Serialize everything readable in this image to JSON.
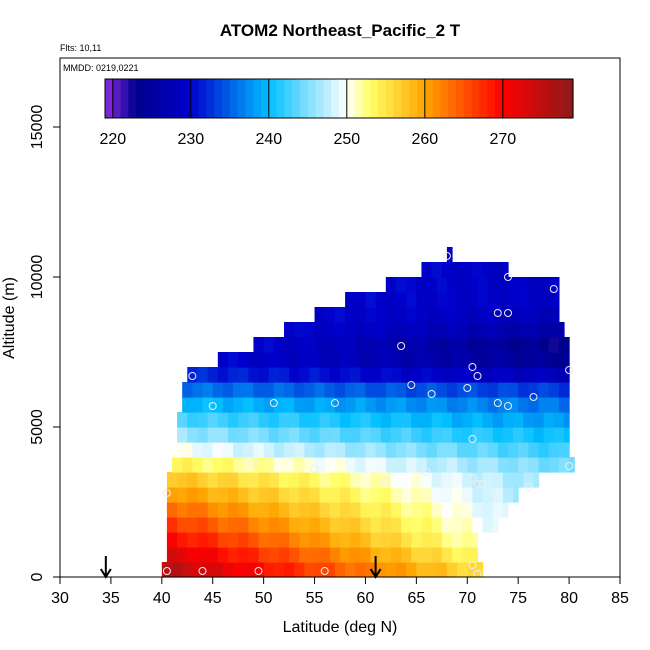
{
  "chart_data": {
    "type": "heatmap",
    "title": "ATOM2 Northeast_Pacific_2 T",
    "info_lines": [
      "Flts: 10,11",
      "MMDD: 0219,0221"
    ],
    "xlabel": "Latitude (deg N)",
    "ylabel": "Altitude (m)",
    "xlim": [
      30,
      85
    ],
    "ylim": [
      0,
      17300
    ],
    "xticks": [
      "30",
      "35",
      "40",
      "45",
      "50",
      "55",
      "60",
      "65",
      "70",
      "75",
      "80",
      "85"
    ],
    "yticks": [
      "0",
      "5000",
      "10000",
      "15000"
    ],
    "colorbar": {
      "range": [
        219,
        279
      ],
      "tick_labels": [
        "220",
        "230",
        "240",
        "250",
        "260",
        "270"
      ],
      "tick_values": [
        220,
        230,
        240,
        250,
        260,
        270
      ],
      "colors": [
        "#8a2be2",
        "#00008b",
        "#0000cd",
        "#00bfff",
        "#ffffff",
        "#ffff66",
        "#ffa500",
        "#ff0000",
        "#8b1a1a"
      ],
      "color_stops": [
        219,
        223,
        230,
        240,
        250,
        253,
        260,
        270,
        279
      ]
    },
    "field": {
      "row_height_m": 500,
      "rows": [
        {
          "alt": 0,
          "lat_min": 40,
          "lat_max": 71.5,
          "temp_south": 276,
          "temp_north": 255
        },
        {
          "alt": 500,
          "lat_min": 40.5,
          "lat_max": 71,
          "temp_south": 273,
          "temp_north": 253
        },
        {
          "alt": 1000,
          "lat_min": 40.5,
          "lat_max": 71,
          "temp_south": 270,
          "temp_north": 251
        },
        {
          "alt": 1500,
          "lat_min": 40.5,
          "lat_max": 73,
          "temp_south": 267,
          "temp_north": 249
        },
        {
          "alt": 2000,
          "lat_min": 40.5,
          "lat_max": 74,
          "temp_south": 264,
          "temp_north": 248
        },
        {
          "alt": 2500,
          "lat_min": 40.5,
          "lat_max": 75,
          "temp_south": 261,
          "temp_north": 247
        },
        {
          "alt": 3000,
          "lat_min": 40.5,
          "lat_max": 77,
          "temp_south": 258,
          "temp_north": 246
        },
        {
          "alt": 3500,
          "lat_min": 41,
          "lat_max": 80.5,
          "temp_south": 254,
          "temp_north": 244
        },
        {
          "alt": 4000,
          "lat_min": 41,
          "lat_max": 80,
          "temp_south": 250,
          "temp_north": 242
        },
        {
          "alt": 4500,
          "lat_min": 41.5,
          "lat_max": 80,
          "temp_south": 246,
          "temp_north": 240
        },
        {
          "alt": 5000,
          "lat_min": 41.5,
          "lat_max": 80,
          "temp_south": 243,
          "temp_north": 238
        },
        {
          "alt": 5500,
          "lat_min": 42,
          "lat_max": 80,
          "temp_south": 240,
          "temp_north": 236
        },
        {
          "alt": 6000,
          "lat_min": 42,
          "lat_max": 80,
          "temp_south": 236,
          "temp_north": 233
        },
        {
          "alt": 6500,
          "lat_min": 42.5,
          "lat_max": 80,
          "temp_south": 232,
          "temp_north": 228
        },
        {
          "alt": 7000,
          "lat_min": 45.5,
          "lat_max": 80,
          "temp_south": 230,
          "temp_north": 224
        },
        {
          "alt": 7500,
          "lat_min": 49,
          "lat_max": 80,
          "temp_south": 230,
          "temp_north": 223
        },
        {
          "alt": 8000,
          "lat_min": 52,
          "lat_max": 79.5,
          "temp_south": 230,
          "temp_north": 226
        },
        {
          "alt": 8500,
          "lat_min": 55,
          "lat_max": 79,
          "temp_south": 230,
          "temp_north": 228
        },
        {
          "alt": 9000,
          "lat_min": 58,
          "lat_max": 79,
          "temp_south": 230,
          "temp_north": 229
        },
        {
          "alt": 9500,
          "lat_min": 62,
          "lat_max": 79,
          "temp_south": 230,
          "temp_north": 229
        },
        {
          "alt": 10000,
          "lat_min": 65.5,
          "lat_max": 74,
          "temp_south": 230,
          "temp_north": 229
        },
        {
          "alt": 10500,
          "lat_min": 68,
          "lat_max": 68.5,
          "temp_south": 230,
          "temp_north": 230
        }
      ]
    },
    "observation_points": [
      [
        40.5,
        200
      ],
      [
        44,
        200
      ],
      [
        49.5,
        200
      ],
      [
        56,
        200
      ],
      [
        70.5,
        400
      ],
      [
        71,
        100
      ],
      [
        40.5,
        2800
      ],
      [
        49,
        3800
      ],
      [
        55,
        3600
      ],
      [
        62,
        3200
      ],
      [
        66,
        3500
      ],
      [
        70.5,
        3300
      ],
      [
        71,
        3100
      ],
      [
        71.5,
        3100
      ],
      [
        72.5,
        2800
      ],
      [
        76,
        3000
      ],
      [
        80,
        3700
      ],
      [
        70.5,
        4600
      ],
      [
        43,
        6700
      ],
      [
        45,
        5700
      ],
      [
        51,
        5800
      ],
      [
        57,
        5800
      ],
      [
        64.5,
        6400
      ],
      [
        66.5,
        6100
      ],
      [
        70,
        6300
      ],
      [
        70.5,
        7000
      ],
      [
        71,
        6700
      ],
      [
        73,
        5800
      ],
      [
        74,
        5700
      ],
      [
        76.5,
        6000
      ],
      [
        80,
        6900
      ],
      [
        63.5,
        7700
      ],
      [
        73,
        8800
      ],
      [
        74,
        8800
      ],
      [
        78.5,
        9600
      ],
      [
        74,
        10000
      ],
      [
        68,
        10700
      ]
    ],
    "arrows": [
      {
        "lat": 34.5
      },
      {
        "lat": 61
      }
    ]
  }
}
